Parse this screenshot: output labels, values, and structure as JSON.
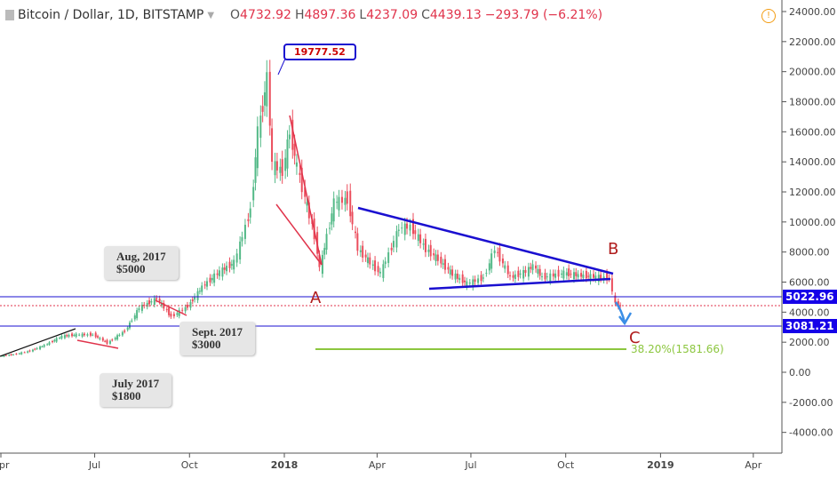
{
  "header": {
    "symbol": "Bitcoin / Dollar, 1D, BITSTAMP",
    "o_label": "O",
    "open": "4732.92",
    "h_label": "H",
    "high": "4897.36",
    "l_label": "L",
    "low": "4237.09",
    "c_label": "C",
    "close": "4439.13",
    "change": "−293.79 (−6.21%)",
    "warning_icon": "alert-circle-icon"
  },
  "colors": {
    "up": "#53b987",
    "down": "#eb4d5c",
    "trendline": "#1a0fd0",
    "fib": "#8cc63f"
  },
  "annotations": {
    "peak": "19777.52",
    "a": "A",
    "b": "B",
    "c": "C",
    "aug": [
      "Aug, 2017",
      "$5000"
    ],
    "sept": [
      "Sept. 2017",
      "$3000"
    ],
    "july": [
      "July 2017",
      "$1800"
    ],
    "fib": "38.20%(1581.66)",
    "line1": "5022.96",
    "line2": "3081.21"
  },
  "chart_data": {
    "type": "candlestick",
    "y_ticks": [
      "24000.00",
      "22000.00",
      "20000.00",
      "18000.00",
      "16000.00",
      "14000.00",
      "12000.00",
      "10000.00",
      "8000.00",
      "6000.00",
      "4000.00",
      "2000.00",
      "0.00",
      "-2000.00",
      "-4000.00"
    ],
    "ylim": [
      -5000,
      24500
    ],
    "x_ticks": [
      "Apr",
      "Jul",
      "Oct",
      "2018",
      "Apr",
      "Jul",
      "Oct",
      "2019",
      "Apr"
    ],
    "x_tick_dates": [
      "2017-04-01",
      "2017-07-01",
      "2017-10-01",
      "2018-01-01",
      "2018-04-01",
      "2018-07-01",
      "2018-10-01",
      "2019-01-01",
      "2019-04-01"
    ],
    "series": {
      "dates": [
        "2017-04-01",
        "2017-04-15",
        "2017-05-01",
        "2017-05-15",
        "2017-06-01",
        "2017-06-15",
        "2017-07-01",
        "2017-07-15",
        "2017-08-01",
        "2017-08-15",
        "2017-09-01",
        "2017-09-15",
        "2017-10-01",
        "2017-10-15",
        "2017-11-01",
        "2017-11-15",
        "2017-12-01",
        "2017-12-08",
        "2017-12-17",
        "2017-12-22",
        "2018-01-01",
        "2018-01-08",
        "2018-01-15",
        "2018-02-01",
        "2018-02-06",
        "2018-02-20",
        "2018-03-05",
        "2018-03-15",
        "2018-04-01",
        "2018-04-06",
        "2018-04-24",
        "2018-05-05",
        "2018-05-20",
        "2018-06-01",
        "2018-06-15",
        "2018-06-29",
        "2018-07-15",
        "2018-07-26",
        "2018-08-10",
        "2018-08-25",
        "2018-09-01",
        "2018-09-10",
        "2018-10-01",
        "2018-10-15",
        "2018-11-01",
        "2018-11-14",
        "2018-11-20",
        "2018-11-25"
      ],
      "close": [
        1080,
        1180,
        1420,
        1800,
        2400,
        2500,
        2500,
        1950,
        2750,
        4300,
        4900,
        3700,
        4400,
        5700,
        6700,
        7300,
        10900,
        16000,
        19500,
        13800,
        13400,
        16000,
        13600,
        9100,
        6900,
        11300,
        11500,
        8200,
        6900,
        6600,
        9600,
        9700,
        8200,
        7500,
        6500,
        5900,
        6300,
        8200,
        6300,
        6700,
        7100,
        6300,
        6600,
        6450,
        6350,
        6250,
        4500,
        4439
      ]
    }
  }
}
